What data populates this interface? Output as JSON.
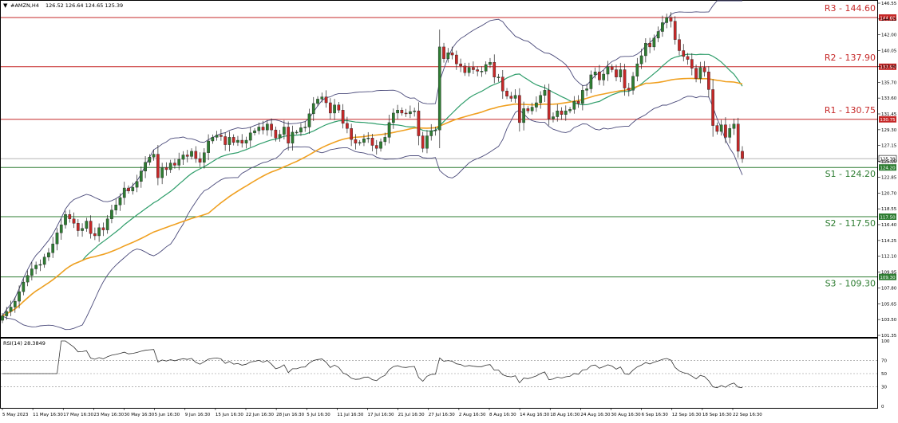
{
  "header": {
    "symbol": "#AMZN,H4",
    "ohlc": "126.52 126.64 124.65 125.39"
  },
  "rsi_label": "RSI(14) 28.3849",
  "price_axis": {
    "ticks": [
      "146.55",
      "144.15",
      "142.00",
      "140.05",
      "137.90",
      "135.70",
      "133.60",
      "131.45",
      "129.30",
      "127.15",
      "125.00",
      "122.85",
      "120.70",
      "118.55",
      "116.40",
      "114.25",
      "112.10",
      "109.95",
      "107.80",
      "105.65",
      "103.50",
      "101.35"
    ],
    "current_price_tag": "125.39",
    "current_price_tag2": "124.73"
  },
  "rsi_axis": {
    "ticks": [
      "100",
      "70",
      "50",
      "30",
      "0"
    ]
  },
  "time_axis": {
    "ticks": [
      "5 May 2023",
      "11 May 16:30",
      "17 May 16:30",
      "23 May 16:30",
      "30 May 16:30",
      "5 Jun 16:30",
      "9 Jun 16:30",
      "15 Jun 16:30",
      "22 Jun 16:30",
      "28 Jun 16:30",
      "5 Jul 16:30",
      "11 Jul 16:30",
      "17 Jul 16:30",
      "21 Jul 16:30",
      "27 Jul 16:30",
      "2 Aug 16:30",
      "8 Aug 16:30",
      "14 Aug 16:30",
      "18 Aug 16:30",
      "24 Aug 16:30",
      "30 Aug 16:30",
      "6 Sep 16:30",
      "12 Sep 16:30",
      "18 Sep 16:30",
      "22 Sep 16:30"
    ]
  },
  "levels": [
    {
      "label": "R3 - 144.60",
      "value": 144.6,
      "tag": "144.60",
      "kind": "resistance"
    },
    {
      "label": "R2 - 137.90",
      "value": 137.9,
      "tag": "137.90",
      "kind": "resistance"
    },
    {
      "label": "R1 - 130.75",
      "value": 130.75,
      "tag": "130.75",
      "kind": "resistance"
    },
    {
      "label": "S1 - 124.20",
      "value": 124.2,
      "tag": "124.20",
      "kind": "support"
    },
    {
      "label": "S2 - 117.50",
      "value": 117.5,
      "tag": "117.50",
      "kind": "support"
    },
    {
      "label": "S3 - 109.30",
      "value": 109.3,
      "tag": "109.30",
      "kind": "support"
    }
  ],
  "colors": {
    "bull": "#2e7d32",
    "bear": "#c62828",
    "resistance": "#c62828",
    "support": "#2e7d32",
    "bollinger": "#4a4a7a",
    "ma_fast": "#2e9d6a",
    "ma_slow": "#f0a020",
    "rsi": "#333333"
  },
  "chart_data": {
    "type": "candlestick",
    "symbol": "AMZN",
    "timeframe": "H4",
    "ylim": [
      101.35,
      146.55
    ],
    "rsi_ylim": [
      0,
      100
    ],
    "rsi_levels": [
      70,
      50,
      30
    ],
    "closes": [
      104.0,
      104.6,
      105.2,
      106.0,
      107.3,
      108.6,
      109.5,
      110.4,
      110.9,
      111.0,
      112.0,
      112.6,
      113.8,
      115.3,
      116.4,
      117.8,
      117.2,
      116.6,
      115.6,
      115.9,
      116.9,
      115.2,
      114.9,
      116.0,
      115.7,
      117.2,
      118.4,
      119.1,
      120.1,
      121.4,
      121.0,
      121.5,
      122.3,
      123.7,
      124.9,
      125.6,
      126.0,
      122.8,
      124.2,
      123.9,
      124.8,
      124.5,
      125.3,
      125.9,
      125.7,
      126.4,
      125.4,
      124.9,
      126.2,
      127.8,
      128.3,
      128.6,
      128.4,
      127.3,
      128.3,
      127.6,
      127.9,
      127.5,
      127.9,
      128.9,
      129.2,
      129.7,
      129.3,
      130.1,
      129.3,
      128.2,
      128.7,
      129.7,
      127.5,
      129.0,
      129.0,
      129.6,
      129.7,
      131.5,
      132.9,
      133.5,
      133.8,
      133.0,
      131.6,
      132.7,
      132.0,
      130.2,
      129.5,
      128.0,
      127.5,
      127.6,
      128.1,
      128.2,
      127.2,
      126.8,
      127.7,
      128.3,
      130.3,
      131.6,
      132.0,
      131.6,
      131.5,
      131.8,
      131.9,
      128.5,
      126.8,
      128.5,
      129.2,
      129.3,
      140.6,
      139.0,
      139.8,
      139.5,
      138.3,
      138.0,
      137.1,
      137.8,
      137.5,
      137.3,
      137.3,
      138.2,
      138.5,
      136.5,
      136.5,
      134.6,
      133.9,
      133.6,
      134.0,
      130.3,
      132.2,
      131.9,
      132.4,
      133.0,
      134.0,
      134.7,
      130.8,
      131.1,
      131.9,
      131.4,
      131.9,
      132.1,
      133.2,
      132.9,
      134.7,
      134.9,
      136.8,
      137.2,
      136.1,
      136.9,
      137.9,
      137.5,
      136.5,
      137.5,
      135.0,
      134.7,
      136.6,
      138.3,
      139.4,
      141.1,
      140.6,
      141.8,
      142.7,
      143.9,
      144.6,
      144.1,
      141.6,
      140.1,
      139.3,
      138.9,
      137.7,
      136.3,
      137.8,
      137.2,
      134.8,
      129.9,
      129.1,
      130.0,
      128.3,
      129.5,
      130.1,
      126.4,
      125.4
    ],
    "bollinger": {
      "period": 20,
      "deviations": 2
    },
    "ma_fast_period": 20,
    "ma_slow_period": 50,
    "rsi_period": 14,
    "rsi_last": 28.3849
  }
}
